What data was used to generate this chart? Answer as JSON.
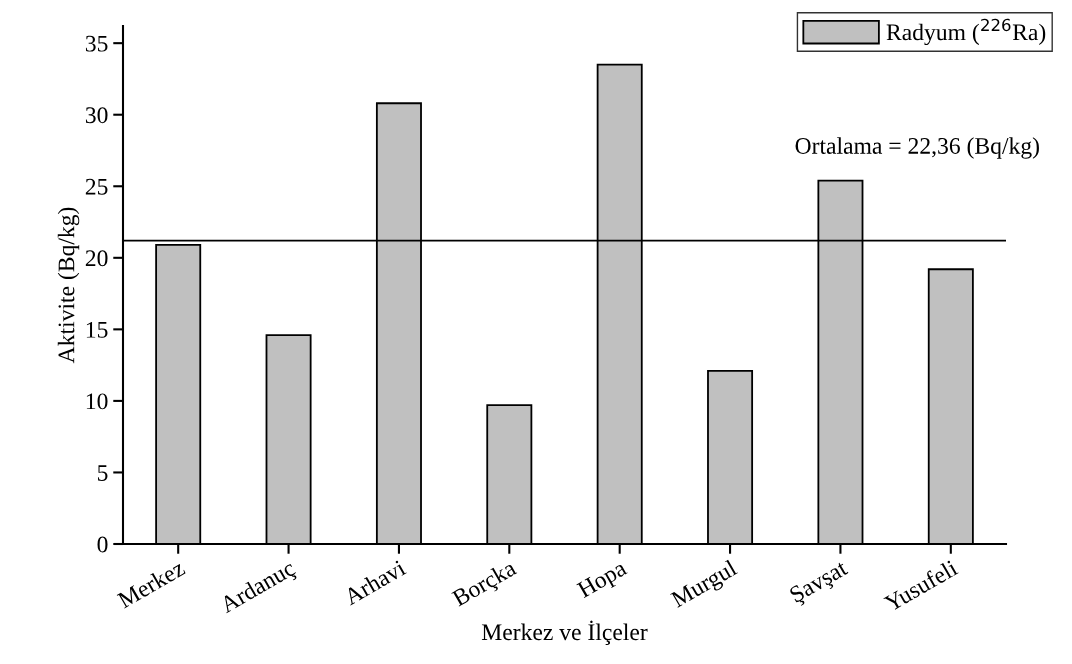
{
  "chart_data": {
    "type": "bar",
    "xlabel": "Merkez ve İlçeler",
    "ylabel": "Aktivite (Bq/kg)",
    "categories": [
      "Merkez",
      "Ardanuç",
      "Arhavi",
      "Borçka",
      "Hopa",
      "Murgul",
      "Şavşat",
      "Yusufeli"
    ],
    "series": [
      {
        "name": "Radyum ($^{226}$Ra)",
        "color": "#c0c0c0",
        "values": [
          20.9,
          14.6,
          30.8,
          9.7,
          33.5,
          12.1,
          25.4,
          19.2
        ]
      }
    ],
    "ylim": [
      0,
      36.2
    ],
    "yticks": [
      0,
      5,
      10,
      15,
      20,
      25,
      30,
      35
    ],
    "ref_lines": [
      {
        "axis": "y",
        "value": 21.2,
        "color": "#000000",
        "line_style": "solid"
      }
    ],
    "annotations": [
      "Ortalama = 22,36 (Bq/kg)"
    ],
    "grid": false,
    "legend": "top right"
  }
}
